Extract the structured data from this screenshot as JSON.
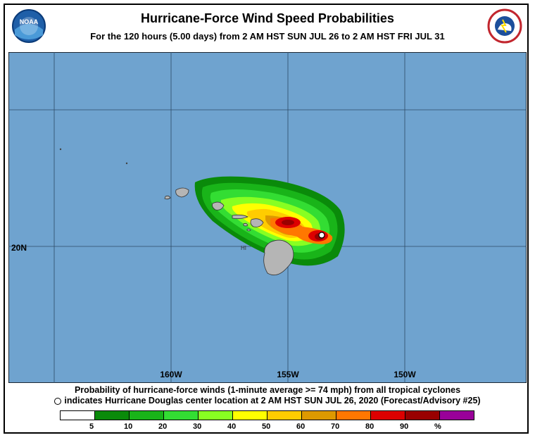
{
  "header": {
    "title": "Hurricane-Force Wind Speed Probabilities",
    "subtitle": "For the 120 hours (5.00 days) from 2 AM HST SUN JUL 26 to 2 AM HST FRI JUL 31"
  },
  "logos": {
    "noaa_text": "NOAA",
    "nws_text": "NATIONAL WEATHER SERVICE"
  },
  "map": {
    "ocean_color": "#6fa3cf",
    "land_color": "#b5b5b5",
    "lon_labels": [
      "160W",
      "155W",
      "150W"
    ],
    "lat_labels": [
      "20N"
    ],
    "state_label": "HI"
  },
  "footer": {
    "line1": "Probability of hurricane-force winds (1-minute average >= 74 mph) from all tropical cyclones",
    "line2": "indicates Hurricane Douglas center location at 2 AM HST SUN JUL 26, 2020 (Forecast/Advisory #25)"
  },
  "legend": {
    "colors": [
      "#ffffff",
      "#0a8a0a",
      "#19b419",
      "#33dd33",
      "#88ff22",
      "#ffff00",
      "#ffcc00",
      "#dd9900",
      "#ff7700",
      "#dd0000",
      "#990000",
      "#990099"
    ],
    "labels": [
      "5",
      "10",
      "20",
      "30",
      "40",
      "50",
      "60",
      "70",
      "80",
      "90",
      "%"
    ]
  }
}
